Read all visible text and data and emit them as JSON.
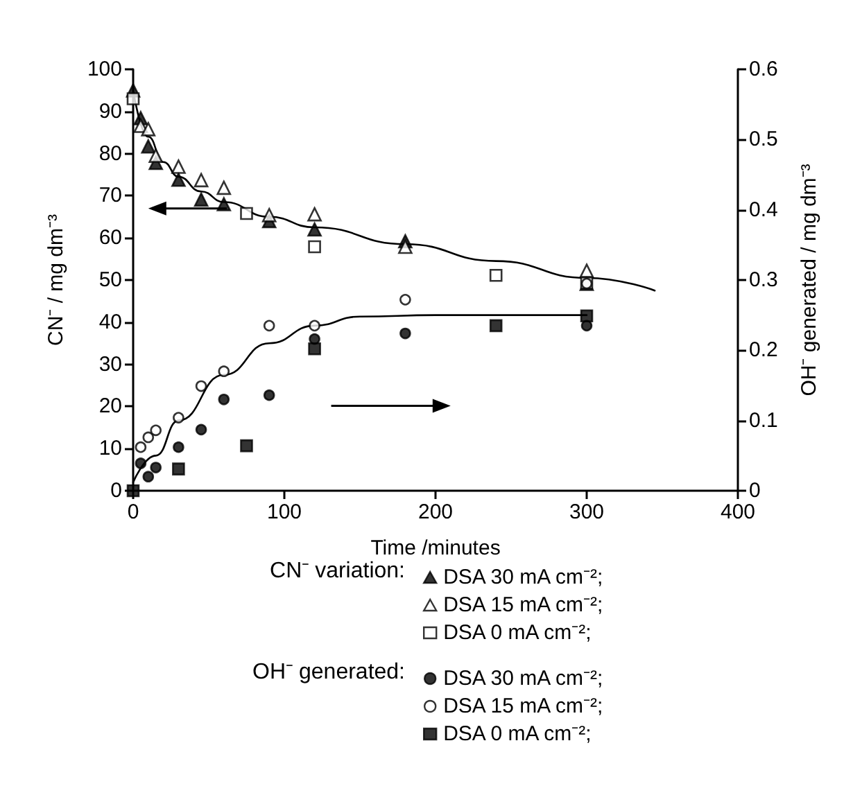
{
  "chart_data": {
    "type": "scatter",
    "xlabel": "Time /minutes",
    "ylabel": "CN⁻ / mg dm⁻³",
    "y2label": "OH⁻ generated / mg dm⁻³",
    "xlim": [
      0,
      400
    ],
    "xticks": [
      0,
      100,
      200,
      300,
      400
    ],
    "ylim": [
      0,
      100
    ],
    "yticks": [
      0,
      10,
      20,
      30,
      40,
      50,
      60,
      70,
      80,
      90,
      100
    ],
    "y2lim": [
      0,
      0.6
    ],
    "y2ticks": [
      0,
      0.1,
      0.2,
      0.3,
      0.4,
      0.5,
      0.6
    ],
    "grid": false,
    "legend": "bottom",
    "annotations": [
      "CN⁻ variation:",
      "OH⁻ generated:"
    ],
    "series": [
      {
        "name": "DSA 30 mA cm⁻²;",
        "marker": "triangle",
        "color": "#000000",
        "x": [
          0,
          5,
          10,
          15,
          30,
          45,
          60,
          90,
          120,
          180,
          300
        ],
        "values": [
          95,
          88.4,
          81.7,
          77.8,
          73.8,
          69.1,
          68,
          64,
          62,
          59.2,
          49.1
        ]
      },
      {
        "name": "DSA 15 mA cm⁻²;",
        "marker": "triangle",
        "color": "#ffffff",
        "x": [
          5,
          10,
          15,
          30,
          45,
          60,
          90,
          120,
          180,
          300
        ],
        "values": [
          86.6,
          85.8,
          79.5,
          76.9,
          73.7,
          71.9,
          65.4,
          65.6,
          57.9,
          52.2
        ]
      },
      {
        "name": "DSA 0 mA cm⁻²;",
        "marker": "square",
        "color": "#ffffff",
        "x": [
          0,
          75,
          120,
          240,
          300
        ],
        "values": [
          93,
          65.8,
          57.9,
          51.1,
          49.3
        ]
      },
      {
        "name": "DSA 30 mA cm⁻²;",
        "marker": "circle",
        "color": "#000000",
        "axis": "y2",
        "x": [
          5,
          10,
          15,
          30,
          45,
          60,
          90,
          120,
          180,
          300
        ],
        "values": [
          0.039,
          0.02,
          0.033,
          0.062,
          0.087,
          0.13,
          0.136,
          0.216,
          0.224,
          0.235
        ]
      },
      {
        "name": "DSA 15 mA cm⁻²;",
        "marker": "circle",
        "color": "#ffffff",
        "axis": "y2",
        "x": [
          5,
          10,
          15,
          30,
          45,
          60,
          90,
          120,
          180,
          300
        ],
        "values": [
          0.062,
          0.076,
          0.086,
          0.104,
          0.149,
          0.17,
          0.235,
          0.235,
          0.272,
          0.295
        ]
      },
      {
        "name": "DSA 0 mA cm⁻²;",
        "marker": "square",
        "color": "#000000",
        "axis": "y2",
        "x": [
          0,
          30,
          75,
          120,
          240,
          300
        ],
        "values": [
          0,
          0.031,
          0.064,
          0.202,
          0.235,
          0.249
        ]
      },
      {
        "type": "line",
        "marker": "none",
        "color": "#000000",
        "x": [
          0,
          10,
          20,
          30,
          45,
          60,
          90,
          120,
          180,
          240,
          300,
          345
        ],
        "values": [
          95,
          84,
          78,
          74.5,
          71,
          68.5,
          65,
          62.5,
          58.5,
          54.5,
          50.5,
          47.5
        ]
      },
      {
        "type": "line",
        "marker": "none",
        "color": "#000000",
        "axis": "y2",
        "x": [
          0,
          15,
          30,
          60,
          90,
          120,
          150,
          200,
          300
        ],
        "values": [
          0.012,
          0.05,
          0.1,
          0.165,
          0.21,
          0.235,
          0.248,
          0.25,
          0.25
        ]
      }
    ]
  }
}
